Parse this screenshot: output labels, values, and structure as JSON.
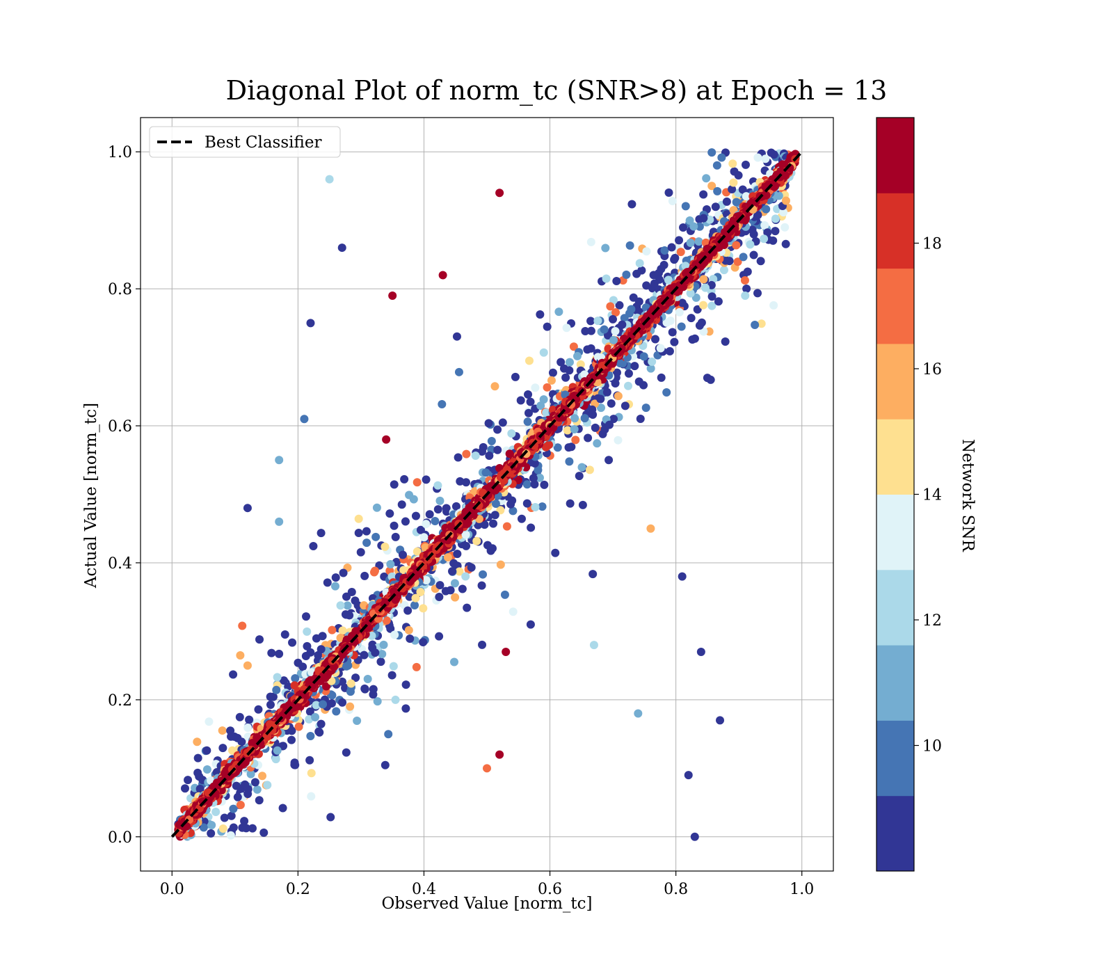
{
  "chart_data": {
    "type": "scatter",
    "title": "Diagonal Plot of norm_tc (SNR>8) at Epoch = 13",
    "xlabel": "Observed Value [norm_tc]",
    "ylabel": "Actual Value [norm_tc]",
    "xlim": [
      -0.05,
      1.05
    ],
    "ylim": [
      -0.05,
      1.05
    ],
    "xticks": [
      "0.0",
      "0.2",
      "0.4",
      "0.6",
      "0.8",
      "1.0"
    ],
    "yticks": [
      "0.0",
      "0.2",
      "0.4",
      "0.6",
      "0.8",
      "1.0"
    ],
    "xtick_values": [
      0.0,
      0.2,
      0.4,
      0.6,
      0.8,
      1.0
    ],
    "ytick_values": [
      0.0,
      0.2,
      0.4,
      0.6,
      0.8,
      1.0
    ],
    "grid": true,
    "legend": {
      "placement": "upper-left",
      "entries": [
        {
          "label": "Best Classifier",
          "style": "dashed",
          "color": "#000000"
        }
      ]
    },
    "reference_line": {
      "label": "Best Classifier",
      "from": [
        0,
        0
      ],
      "to": [
        1,
        1
      ]
    },
    "colorbar": {
      "label": "Network SNR",
      "range": [
        8,
        20
      ],
      "ticks": [
        10,
        12,
        14,
        16,
        18
      ],
      "tick_labels": [
        "10",
        "12",
        "14",
        "16",
        "18"
      ],
      "colors": [
        "#313695",
        "#4575b4",
        "#74add1",
        "#abd9e9",
        "#e0f3f8",
        "#fee090",
        "#fdae61",
        "#f46d43",
        "#d73027",
        "#a50026"
      ]
    },
    "series": [
      {
        "description_of_distribution": "dense band of points along y = x (high SNR, dark red) with scattered low-SNR outliers (blue) spread off the diagonal",
        "sample_points": [
          [
            0.25,
            0.96,
            12
          ],
          [
            0.27,
            0.86,
            8.5
          ],
          [
            0.12,
            0.48,
            8.5
          ],
          [
            0.17,
            0.55,
            11
          ],
          [
            0.17,
            0.46,
            11
          ],
          [
            0.22,
            0.75,
            8.5
          ],
          [
            0.21,
            0.61,
            10
          ],
          [
            0.34,
            0.58,
            19
          ],
          [
            0.35,
            0.79,
            19
          ],
          [
            0.52,
            0.94,
            19
          ],
          [
            0.85,
            0.67,
            8.5
          ],
          [
            0.81,
            0.38,
            8.5
          ],
          [
            0.84,
            0.27,
            8.5
          ],
          [
            0.87,
            0.17,
            8.5
          ],
          [
            0.82,
            0.09,
            8.5
          ],
          [
            0.83,
            0.0,
            8.5
          ],
          [
            0.53,
            0.27,
            19
          ],
          [
            0.43,
            0.82,
            19
          ],
          [
            0.5,
            0.1,
            17
          ],
          [
            0.12,
            0.25,
            16
          ],
          [
            0.91,
            0.79,
            12
          ],
          [
            0.74,
            0.18,
            11
          ],
          [
            0.67,
            0.28,
            12
          ],
          [
            0.76,
            0.45,
            16
          ],
          [
            0.52,
            0.12,
            19
          ]
        ]
      }
    ]
  }
}
